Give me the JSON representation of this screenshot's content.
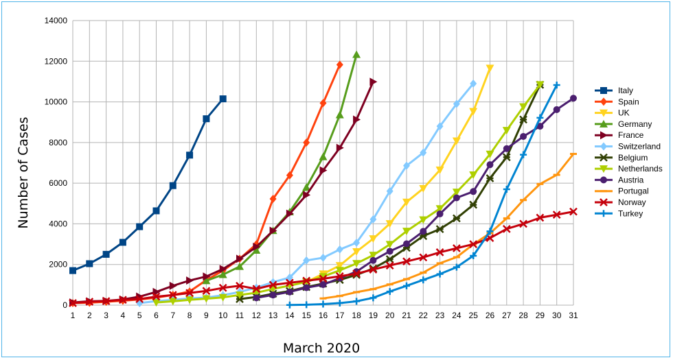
{
  "chart_data": {
    "type": "line",
    "title": "",
    "xlabel": "March 2020",
    "ylabel": "Number of Cases",
    "x": [
      1,
      2,
      3,
      4,
      5,
      6,
      7,
      8,
      9,
      10,
      11,
      12,
      13,
      14,
      15,
      16,
      17,
      18,
      19,
      20,
      21,
      22,
      23,
      24,
      25,
      26,
      27,
      28,
      29,
      30,
      31
    ],
    "xlim": [
      1,
      31
    ],
    "ylim": [
      0,
      14000
    ],
    "yticks": [
      0,
      2000,
      4000,
      6000,
      8000,
      10000,
      12000,
      14000
    ],
    "grid": true,
    "legend_position": "right",
    "series": [
      {
        "name": "Italy",
        "color": "#004586",
        "marker": "square",
        "points": [
          [
            1,
            1700
          ],
          [
            2,
            2040
          ],
          [
            3,
            2500
          ],
          [
            4,
            3090
          ],
          [
            5,
            3860
          ],
          [
            6,
            4640
          ],
          [
            7,
            5880
          ],
          [
            8,
            7380
          ],
          [
            9,
            9170
          ],
          [
            10,
            10150
          ]
        ]
      },
      {
        "name": "Spain",
        "color": "#ff420e",
        "marker": "diamond",
        "points": [
          [
            1,
            100
          ],
          [
            2,
            120
          ],
          [
            3,
            165
          ],
          [
            4,
            220
          ],
          [
            5,
            280
          ],
          [
            6,
            370
          ],
          [
            7,
            500
          ],
          [
            8,
            670
          ],
          [
            9,
            1230
          ],
          [
            10,
            1700
          ],
          [
            11,
            2280
          ],
          [
            12,
            3000
          ],
          [
            13,
            5230
          ],
          [
            14,
            6390
          ],
          [
            15,
            8000
          ],
          [
            16,
            9940
          ],
          [
            17,
            11830
          ]
        ]
      },
      {
        "name": "UK",
        "color": "#ffd320",
        "marker": "triangle-down",
        "points": [
          [
            15,
            1140
          ],
          [
            16,
            1540
          ],
          [
            17,
            1950
          ],
          [
            18,
            2630
          ],
          [
            19,
            3270
          ],
          [
            20,
            4010
          ],
          [
            21,
            5070
          ],
          [
            22,
            5740
          ],
          [
            23,
            6650
          ],
          [
            24,
            8080
          ],
          [
            25,
            9530
          ],
          [
            26,
            11660
          ]
        ]
      },
      {
        "name": "Germany",
        "color": "#579d1c",
        "marker": "triangle-up",
        "points": [
          [
            9,
            1200
          ],
          [
            10,
            1500
          ],
          [
            11,
            1900
          ],
          [
            12,
            2700
          ],
          [
            13,
            3670
          ],
          [
            14,
            4590
          ],
          [
            15,
            5800
          ],
          [
            16,
            7300
          ],
          [
            17,
            9360
          ],
          [
            18,
            12330
          ]
        ]
      },
      {
        "name": "France",
        "color": "#7e0021",
        "marker": "triangle-right",
        "points": [
          [
            1,
            130
          ],
          [
            2,
            190
          ],
          [
            3,
            210
          ],
          [
            4,
            280
          ],
          [
            5,
            420
          ],
          [
            6,
            650
          ],
          [
            7,
            950
          ],
          [
            8,
            1210
          ],
          [
            9,
            1410
          ],
          [
            10,
            1780
          ],
          [
            11,
            2280
          ],
          [
            12,
            2870
          ],
          [
            13,
            3660
          ],
          [
            14,
            4500
          ],
          [
            15,
            5420
          ],
          [
            16,
            6630
          ],
          [
            17,
            7740
          ],
          [
            18,
            9130
          ],
          [
            19,
            10990
          ]
        ]
      },
      {
        "name": "Switzerland",
        "color": "#83caff",
        "marker": "diamond",
        "points": [
          [
            5,
            100
          ],
          [
            6,
            200
          ],
          [
            7,
            260
          ],
          [
            8,
            330
          ],
          [
            9,
            370
          ],
          [
            10,
            490
          ],
          [
            11,
            650
          ],
          [
            12,
            860
          ],
          [
            13,
            1130
          ],
          [
            14,
            1360
          ],
          [
            15,
            2200
          ],
          [
            16,
            2330
          ],
          [
            17,
            2740
          ],
          [
            18,
            3070
          ],
          [
            19,
            4220
          ],
          [
            20,
            5610
          ],
          [
            21,
            6860
          ],
          [
            22,
            7500
          ],
          [
            23,
            8800
          ],
          [
            24,
            9900
          ],
          [
            25,
            10900
          ]
        ]
      },
      {
        "name": "Belgium",
        "color": "#314004",
        "marker": "cross",
        "points": [
          [
            11,
            300
          ],
          [
            12,
            400
          ],
          [
            13,
            560
          ],
          [
            14,
            690
          ],
          [
            15,
            890
          ],
          [
            16,
            1060
          ],
          [
            17,
            1240
          ],
          [
            18,
            1490
          ],
          [
            19,
            1800
          ],
          [
            20,
            2260
          ],
          [
            21,
            2820
          ],
          [
            22,
            3400
          ],
          [
            23,
            3740
          ],
          [
            24,
            4270
          ],
          [
            25,
            4940
          ],
          [
            26,
            6240
          ],
          [
            27,
            7280
          ],
          [
            28,
            9130
          ],
          [
            29,
            10840
          ]
        ]
      },
      {
        "name": "Netherlands",
        "color": "#aecf00",
        "marker": "triangle-down",
        "points": [
          [
            6,
            130
          ],
          [
            7,
            190
          ],
          [
            8,
            260
          ],
          [
            9,
            320
          ],
          [
            10,
            380
          ],
          [
            11,
            500
          ],
          [
            12,
            610
          ],
          [
            13,
            800
          ],
          [
            14,
            960
          ],
          [
            15,
            1140
          ],
          [
            16,
            1410
          ],
          [
            17,
            1710
          ],
          [
            18,
            2050
          ],
          [
            19,
            2460
          ],
          [
            20,
            2990
          ],
          [
            21,
            3640
          ],
          [
            22,
            4200
          ],
          [
            23,
            4750
          ],
          [
            24,
            5560
          ],
          [
            25,
            6410
          ],
          [
            26,
            7430
          ],
          [
            27,
            8600
          ],
          [
            28,
            9760
          ],
          [
            29,
            10850
          ]
        ]
      },
      {
        "name": "Austria",
        "color": "#4b1f6f",
        "marker": "circle",
        "points": [
          [
            12,
            360
          ],
          [
            13,
            500
          ],
          [
            14,
            650
          ],
          [
            15,
            860
          ],
          [
            16,
            1010
          ],
          [
            17,
            1330
          ],
          [
            18,
            1650
          ],
          [
            19,
            2200
          ],
          [
            20,
            2650
          ],
          [
            21,
            3020
          ],
          [
            22,
            3630
          ],
          [
            23,
            4490
          ],
          [
            24,
            5280
          ],
          [
            25,
            5590
          ],
          [
            26,
            6910
          ],
          [
            27,
            7700
          ],
          [
            28,
            8300
          ],
          [
            29,
            8800
          ],
          [
            30,
            9620
          ],
          [
            31,
            10180
          ]
        ]
      },
      {
        "name": "Portugal",
        "color": "#ff950e",
        "marker": "dash",
        "points": [
          [
            16,
            330
          ],
          [
            17,
            450
          ],
          [
            18,
            640
          ],
          [
            19,
            790
          ],
          [
            20,
            1020
          ],
          [
            21,
            1280
          ],
          [
            22,
            1600
          ],
          [
            23,
            2060
          ],
          [
            24,
            2360
          ],
          [
            25,
            2990
          ],
          [
            26,
            3540
          ],
          [
            27,
            4270
          ],
          [
            28,
            5170
          ],
          [
            29,
            5960
          ],
          [
            30,
            6410
          ],
          [
            31,
            7440
          ]
        ]
      },
      {
        "name": "Norway",
        "color": "#c5000b",
        "marker": "x",
        "points": [
          [
            1,
            100
          ],
          [
            2,
            170
          ],
          [
            3,
            200
          ],
          [
            4,
            260
          ],
          [
            5,
            300
          ],
          [
            6,
            420
          ],
          [
            7,
            500
          ],
          [
            8,
            600
          ],
          [
            9,
            700
          ],
          [
            10,
            850
          ],
          [
            11,
            950
          ],
          [
            12,
            800
          ],
          [
            13,
            1000
          ],
          [
            14,
            1100
          ],
          [
            15,
            1200
          ],
          [
            16,
            1300
          ],
          [
            17,
            1420
          ],
          [
            18,
            1550
          ],
          [
            19,
            1750
          ],
          [
            20,
            1950
          ],
          [
            21,
            2150
          ],
          [
            22,
            2350
          ],
          [
            23,
            2600
          ],
          [
            24,
            2800
          ],
          [
            25,
            3000
          ],
          [
            26,
            3300
          ],
          [
            27,
            3750
          ],
          [
            28,
            4000
          ],
          [
            29,
            4300
          ],
          [
            30,
            4450
          ],
          [
            31,
            4600
          ]
        ]
      },
      {
        "name": "Turkey",
        "color": "#0084d1",
        "marker": "plus",
        "points": [
          [
            14,
            10
          ],
          [
            15,
            20
          ],
          [
            16,
            50
          ],
          [
            17,
            100
          ],
          [
            18,
            190
          ],
          [
            19,
            360
          ],
          [
            20,
            670
          ],
          [
            21,
            950
          ],
          [
            22,
            1240
          ],
          [
            23,
            1530
          ],
          [
            24,
            1870
          ],
          [
            25,
            2430
          ],
          [
            26,
            3630
          ],
          [
            27,
            5700
          ],
          [
            28,
            7400
          ],
          [
            29,
            9220
          ],
          [
            30,
            10830
          ]
        ]
      }
    ]
  }
}
